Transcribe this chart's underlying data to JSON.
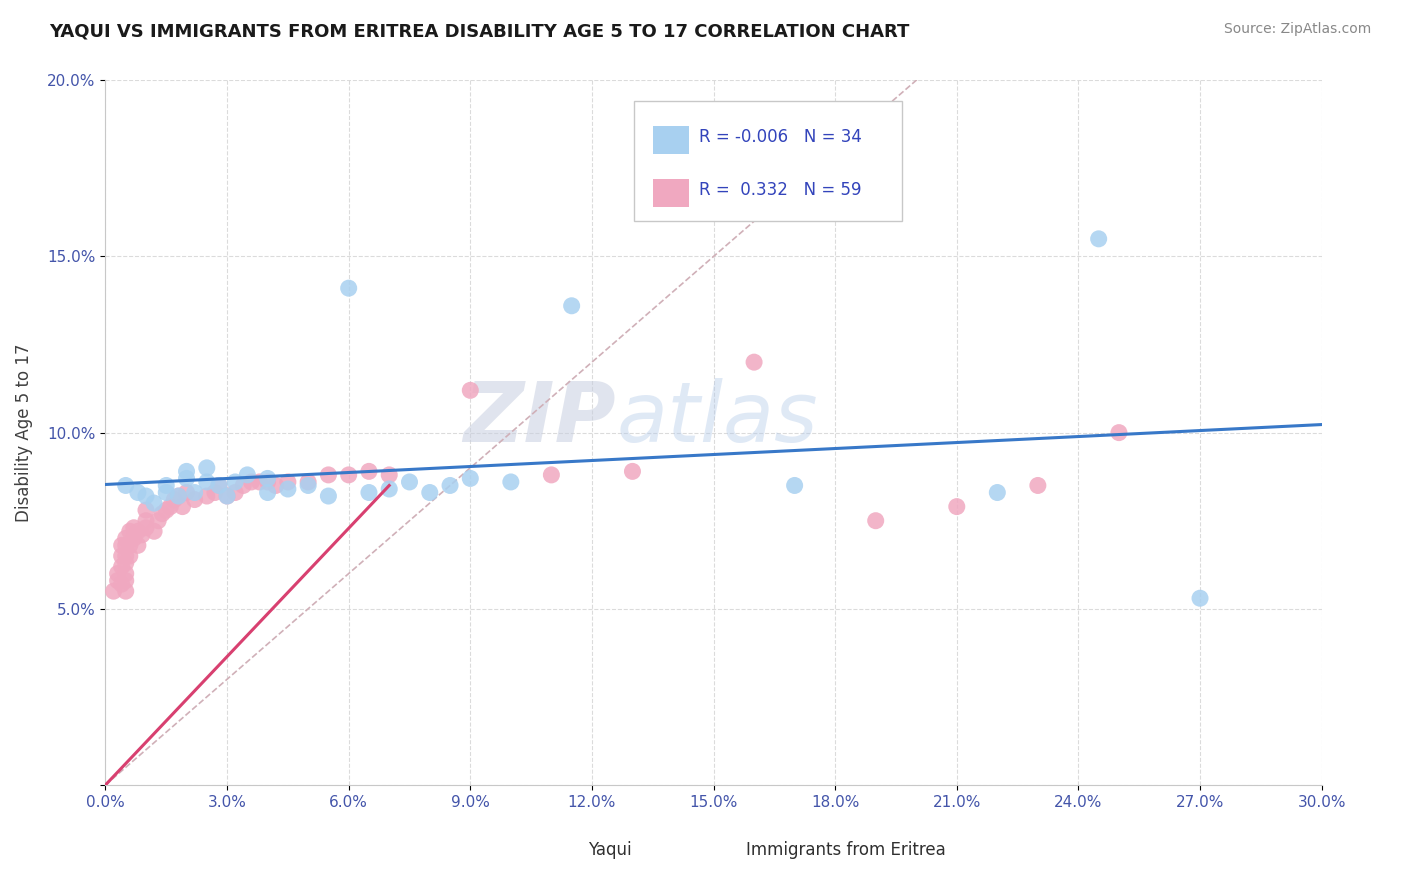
{
  "title": "YAQUI VS IMMIGRANTS FROM ERITREA DISABILITY AGE 5 TO 17 CORRELATION CHART",
  "source_text": "Source: ZipAtlas.com",
  "ylabel": "Disability Age 5 to 17",
  "xlim": [
    0.0,
    0.3
  ],
  "ylim": [
    0.0,
    0.2
  ],
  "xticks": [
    0.0,
    0.03,
    0.06,
    0.09,
    0.12,
    0.15,
    0.18,
    0.21,
    0.24,
    0.27,
    0.3
  ],
  "xticklabels": [
    "0.0%",
    "3.0%",
    "6.0%",
    "9.0%",
    "12.0%",
    "15.0%",
    "18.0%",
    "21.0%",
    "24.0%",
    "27.0%",
    "30.0%"
  ],
  "yticks": [
    0.0,
    0.05,
    0.1,
    0.15,
    0.2
  ],
  "yticklabels": [
    "",
    "5.0%",
    "10.0%",
    "15.0%",
    "20.0%"
  ],
  "legend_R1": "-0.006",
  "legend_N1": "34",
  "legend_R2": "0.332",
  "legend_N2": "59",
  "color_yaqui": "#a8d0f0",
  "color_eritrea": "#f0a8c0",
  "color_trend_yaqui": "#3878c8",
  "color_trend_eritrea": "#d84070",
  "color_ref_line": "#d0b0b8",
  "watermark_zip": "ZIP",
  "watermark_atlas": "atlas",
  "yaqui_x": [
    0.005,
    0.008,
    0.01,
    0.012,
    0.015,
    0.015,
    0.018,
    0.02,
    0.02,
    0.022,
    0.025,
    0.025,
    0.028,
    0.03,
    0.032,
    0.035,
    0.04,
    0.04,
    0.045,
    0.05,
    0.055,
    0.06,
    0.065,
    0.07,
    0.075,
    0.08,
    0.085,
    0.09,
    0.1,
    0.115,
    0.17,
    0.22,
    0.245,
    0.27
  ],
  "yaqui_y": [
    0.085,
    0.083,
    0.082,
    0.08,
    0.083,
    0.085,
    0.082,
    0.087,
    0.089,
    0.083,
    0.086,
    0.09,
    0.085,
    0.082,
    0.086,
    0.088,
    0.083,
    0.087,
    0.084,
    0.085,
    0.082,
    0.141,
    0.083,
    0.084,
    0.086,
    0.083,
    0.085,
    0.087,
    0.086,
    0.136,
    0.085,
    0.083,
    0.155,
    0.053
  ],
  "eritrea_x": [
    0.002,
    0.003,
    0.003,
    0.004,
    0.004,
    0.004,
    0.004,
    0.005,
    0.005,
    0.005,
    0.005,
    0.005,
    0.005,
    0.005,
    0.006,
    0.006,
    0.006,
    0.007,
    0.007,
    0.008,
    0.008,
    0.009,
    0.01,
    0.01,
    0.01,
    0.012,
    0.013,
    0.014,
    0.015,
    0.016,
    0.017,
    0.018,
    0.019,
    0.02,
    0.022,
    0.025,
    0.027,
    0.028,
    0.03,
    0.032,
    0.034,
    0.036,
    0.038,
    0.04,
    0.042,
    0.045,
    0.05,
    0.055,
    0.06,
    0.065,
    0.07,
    0.09,
    0.11,
    0.13,
    0.16,
    0.19,
    0.21,
    0.23,
    0.25
  ],
  "eritrea_y": [
    0.055,
    0.06,
    0.058,
    0.057,
    0.062,
    0.065,
    0.068,
    0.055,
    0.058,
    0.06,
    0.063,
    0.065,
    0.068,
    0.07,
    0.065,
    0.068,
    0.072,
    0.07,
    0.073,
    0.068,
    0.072,
    0.071,
    0.073,
    0.075,
    0.078,
    0.072,
    0.075,
    0.077,
    0.078,
    0.079,
    0.081,
    0.082,
    0.079,
    0.083,
    0.081,
    0.082,
    0.083,
    0.085,
    0.082,
    0.083,
    0.085,
    0.086,
    0.086,
    0.086,
    0.085,
    0.086,
    0.086,
    0.088,
    0.088,
    0.089,
    0.088,
    0.112,
    0.088,
    0.089,
    0.12,
    0.075,
    0.079,
    0.085,
    0.1
  ]
}
